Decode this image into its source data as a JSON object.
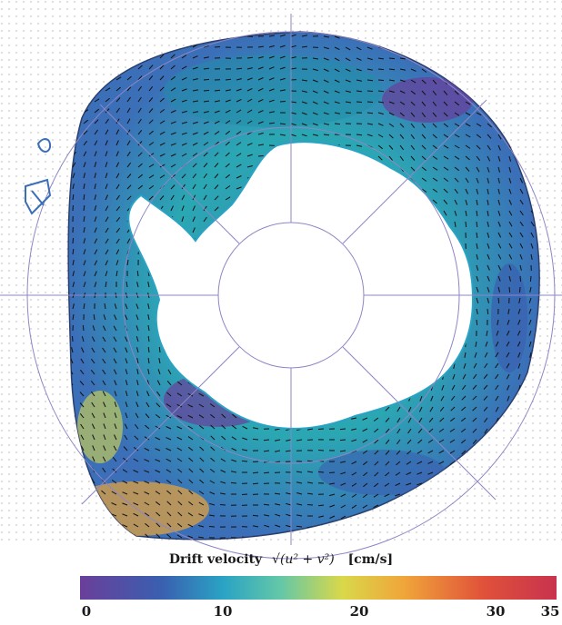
{
  "legend": {
    "title": "Drift velocity",
    "formula": "√(u² + v²)",
    "unit": "[cm/s]",
    "ticks": [
      "0",
      "10",
      "20",
      "30",
      "35"
    ],
    "range": [
      0,
      35
    ],
    "colors": [
      "#6a3f9a",
      "#3a5fb0",
      "#2aa3c4",
      "#63c7a8",
      "#d9d84a",
      "#f0a53a",
      "#e0503a",
      "#c8334e"
    ]
  },
  "map": {
    "projection": "south-polar-stereographic",
    "grid": true,
    "land_color": "#ffffff",
    "grid_color": "#8d86c6",
    "arrow_color": "#111111"
  }
}
